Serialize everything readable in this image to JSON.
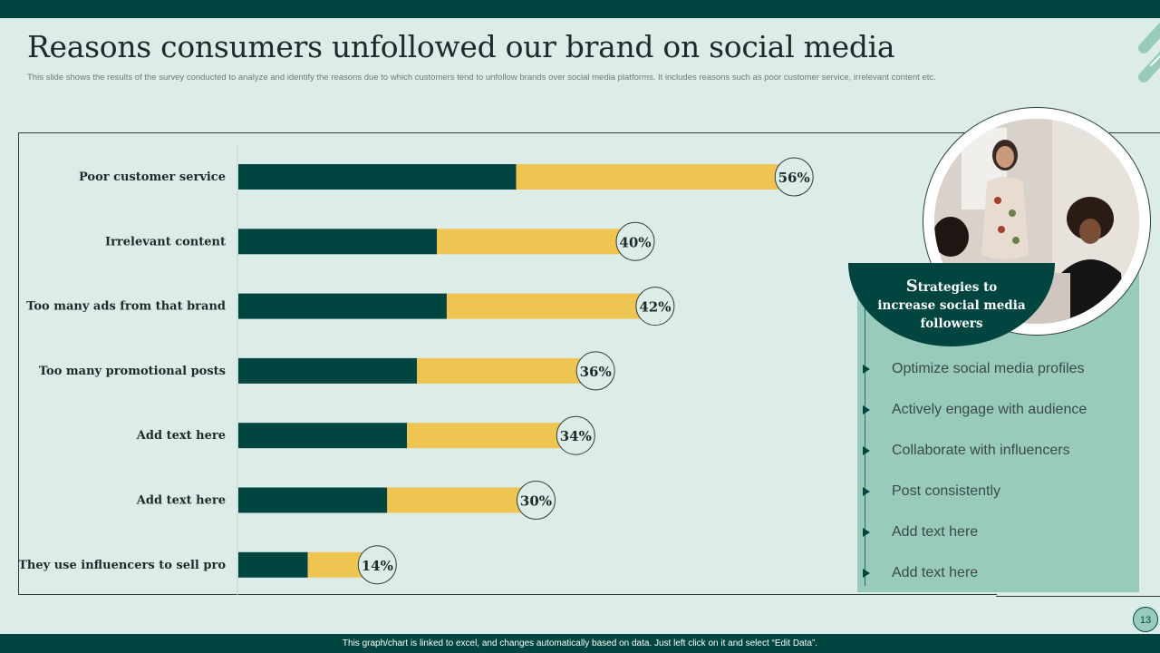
{
  "slide": {
    "title": "Reasons consumers unfollowed our brand on social media",
    "subtitle": "This slide shows the results of the survey conducted to analyze and identify the reasons due to which customers tend to unfollow brands over social media platforms. It includes reasons such as poor customer service, irrelevant content etc.",
    "footer_note": "This graph/chart is linked to excel, and changes automatically based on data. Just left click on it and select “Edit Data”.",
    "page_number": "13"
  },
  "panel": {
    "heading_first_letter": "S",
    "heading_rest": "trategies to increase social media followers",
    "items": [
      "Optimize social media profiles",
      "Actively engage with audience",
      "Collaborate with influencers",
      "Post consistently",
      "Add text here",
      "Add text here"
    ]
  },
  "colors": {
    "dark_teal": "#00453f",
    "yellow": "#efc552",
    "background": "#dcece8",
    "panel": "#98cbbc"
  },
  "chart_data": {
    "type": "bar",
    "orientation": "horizontal",
    "stacked": true,
    "categories": [
      "Poor customer service",
      "Irrelevant content",
      "Too many ads from that brand",
      "Too many promotional posts",
      "Add text here",
      "Add text here",
      "They use influencers to sell pro"
    ],
    "data_labels": [
      "56%",
      "40%",
      "42%",
      "36%",
      "34%",
      "30%",
      "14%"
    ],
    "series": [
      {
        "values": [
          28,
          20,
          21,
          18,
          17,
          15,
          7
        ],
        "color": "#00453f"
      },
      {
        "values": [
          28,
          20,
          21,
          18,
          17,
          15,
          7
        ],
        "color": "#efc552"
      }
    ],
    "totals": [
      56,
      40,
      42,
      36,
      34,
      30,
      14
    ],
    "xlim": [
      0,
      100
    ],
    "grid": false,
    "legend": false
  }
}
